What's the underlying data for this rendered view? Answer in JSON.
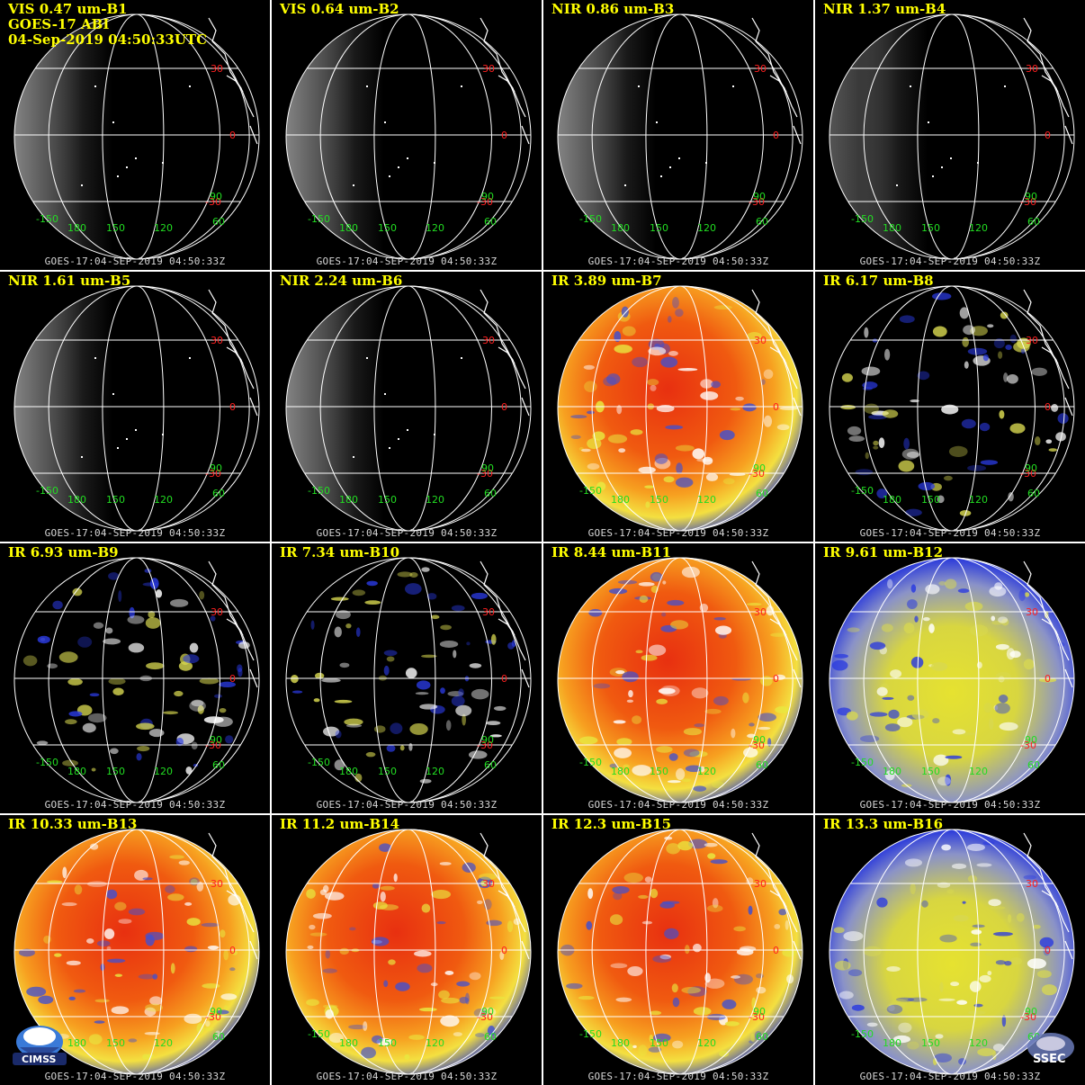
{
  "header": {
    "satellite_line": "GOES-17 ABI",
    "datetime_line": "04-Sep-2019 04:50:33UTC"
  },
  "footer_stamp": "GOES-17:04-SEP-2019 04:50:33Z",
  "grid_labels": {
    "lat_north": "30",
    "lat_equator": "0",
    "lat_south": "-30",
    "lon_150w": "-150",
    "lon_180": "180",
    "lon_150": "150",
    "lon_120": "120",
    "lon_90": "90",
    "lon_60": "60"
  },
  "colors": {
    "title": "#ffff00",
    "lat_label": "#ff2020",
    "lon_label": "#22dd22",
    "grid": "#ffffff",
    "background": "#000000"
  },
  "panels": [
    {
      "title": "VIS 0.47 um-B1",
      "scheme": "vis"
    },
    {
      "title": "VIS 0.64 um-B2",
      "scheme": "vis"
    },
    {
      "title": "NIR 0.86 um-B3",
      "scheme": "vis"
    },
    {
      "title": "NIR 1.37 um-B4",
      "scheme": "vis-dark"
    },
    {
      "title": "NIR 1.61 um-B5",
      "scheme": "vis"
    },
    {
      "title": "NIR 2.24 um-B6",
      "scheme": "vis"
    },
    {
      "title": "IR 3.89 um-B7",
      "scheme": "ir-warm"
    },
    {
      "title": "IR 6.17 um-B8",
      "scheme": "wv-white"
    },
    {
      "title": "IR 6.93 um-B9",
      "scheme": "wv-blue"
    },
    {
      "title": "IR 7.34 um-B10",
      "scheme": "wv-yellow"
    },
    {
      "title": "IR 8.44 um-B11",
      "scheme": "ir-warm"
    },
    {
      "title": "IR 9.61 um-B12",
      "scheme": "ozone"
    },
    {
      "title": "IR 10.33 um-B13",
      "scheme": "ir-warm"
    },
    {
      "title": "IR 11.2 um-B14",
      "scheme": "ir-warm"
    },
    {
      "title": "IR 12.3 um-B15",
      "scheme": "ir-warm"
    },
    {
      "title": "IR 13.3 um-B16",
      "scheme": "ozone"
    }
  ],
  "logos": {
    "left": "CIMSS",
    "right": "SSEC"
  }
}
